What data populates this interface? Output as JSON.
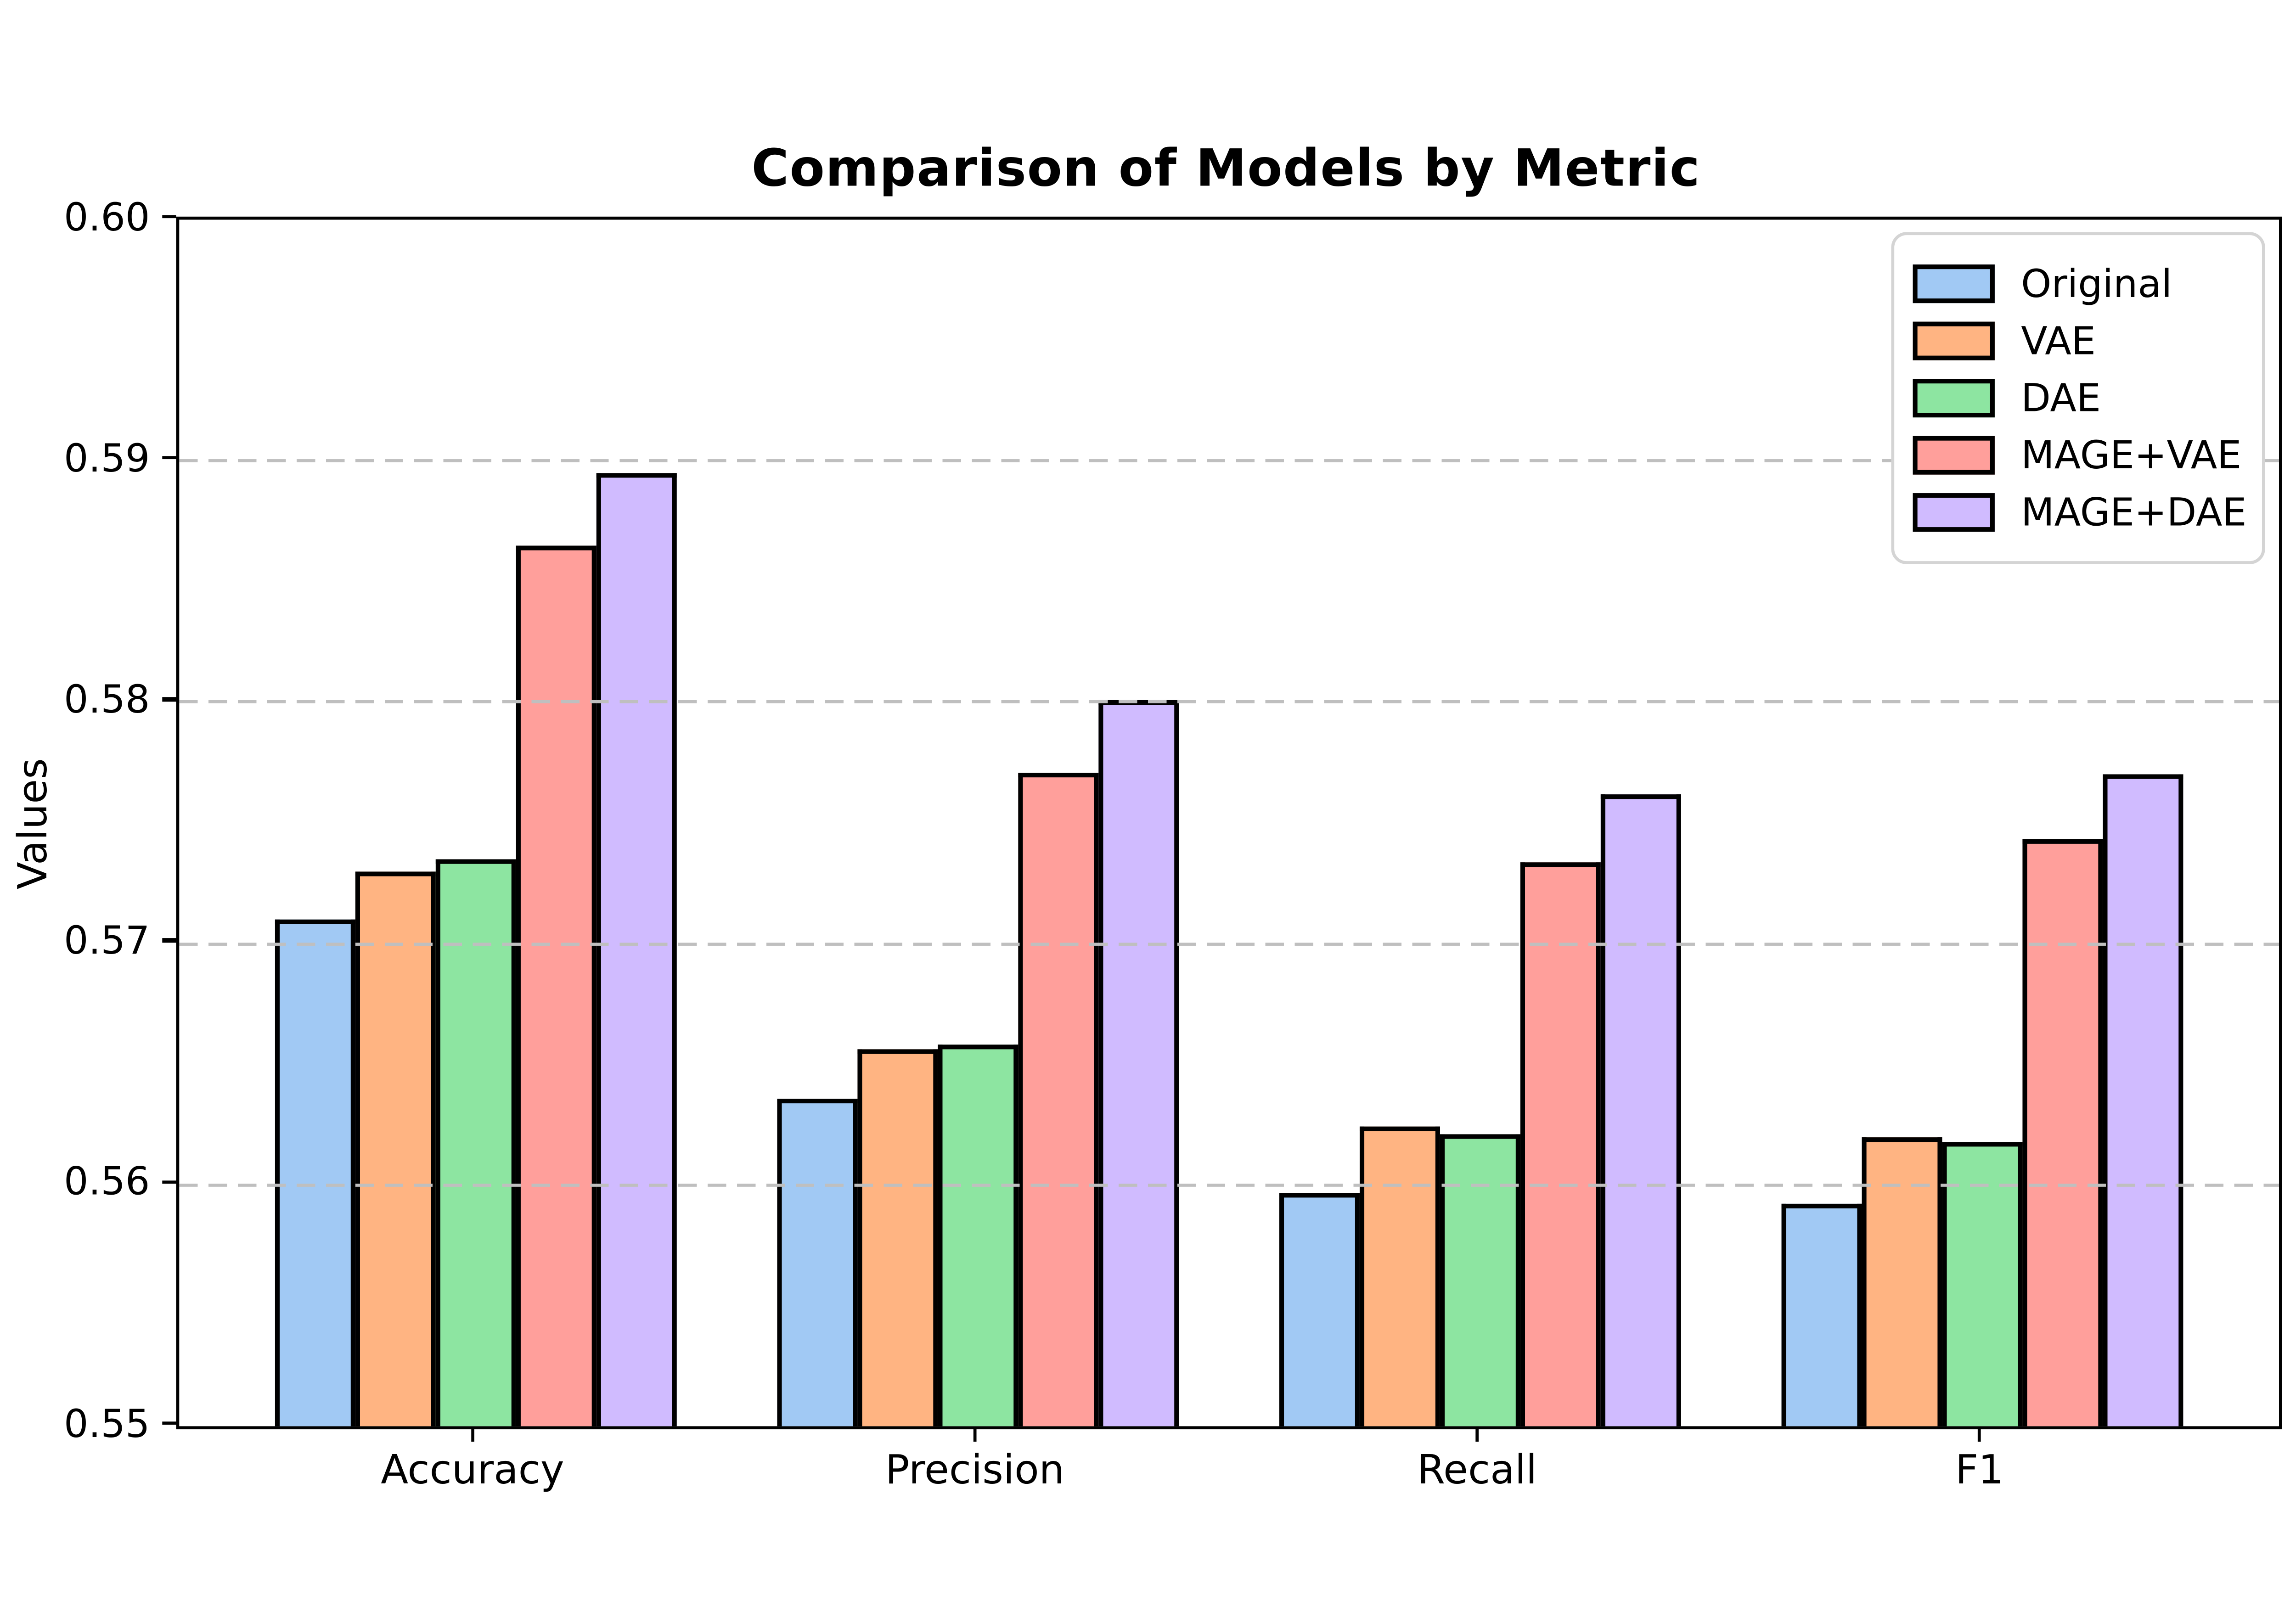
{
  "figure": {
    "title": "Comparison of Models by Metric",
    "background_color": "#ffffff",
    "text_color": "#000000",
    "grid_color": "#bfbfbf",
    "bar_edge_color": "#000000"
  },
  "chart_data": {
    "type": "bar",
    "title": "Comparison of Models by Metric",
    "xlabel": "",
    "ylabel": "Values",
    "categories": [
      "Accuracy",
      "Precision",
      "Recall",
      "F1"
    ],
    "series": [
      {
        "name": "Original",
        "color": "#a1c9f4",
        "values": [
          0.571,
          0.5636,
          0.5597,
          0.5592
        ]
      },
      {
        "name": "VAE",
        "color": "#ffb482",
        "values": [
          0.573,
          0.5656,
          0.5624,
          0.562
        ]
      },
      {
        "name": "DAE",
        "color": "#8de5a1",
        "values": [
          0.5735,
          0.5658,
          0.5621,
          0.5618
        ]
      },
      {
        "name": "MAGE+VAE",
        "color": "#ff9f9b",
        "values": [
          0.5865,
          0.5771,
          0.5734,
          0.5743
        ]
      },
      {
        "name": "MAGE+DAE",
        "color": "#d0bbff",
        "values": [
          0.5895,
          0.5801,
          0.5762,
          0.577
        ]
      }
    ],
    "ylim": [
      0.55,
      0.6
    ],
    "yticks": [
      0.55,
      0.56,
      0.57,
      0.58,
      0.59,
      0.6
    ],
    "ytick_labels": [
      "0.55",
      "0.56",
      "0.57",
      "0.58",
      "0.59",
      "0.60"
    ],
    "grid": true,
    "grid_style": "dashed",
    "legend_position": "upper right"
  }
}
